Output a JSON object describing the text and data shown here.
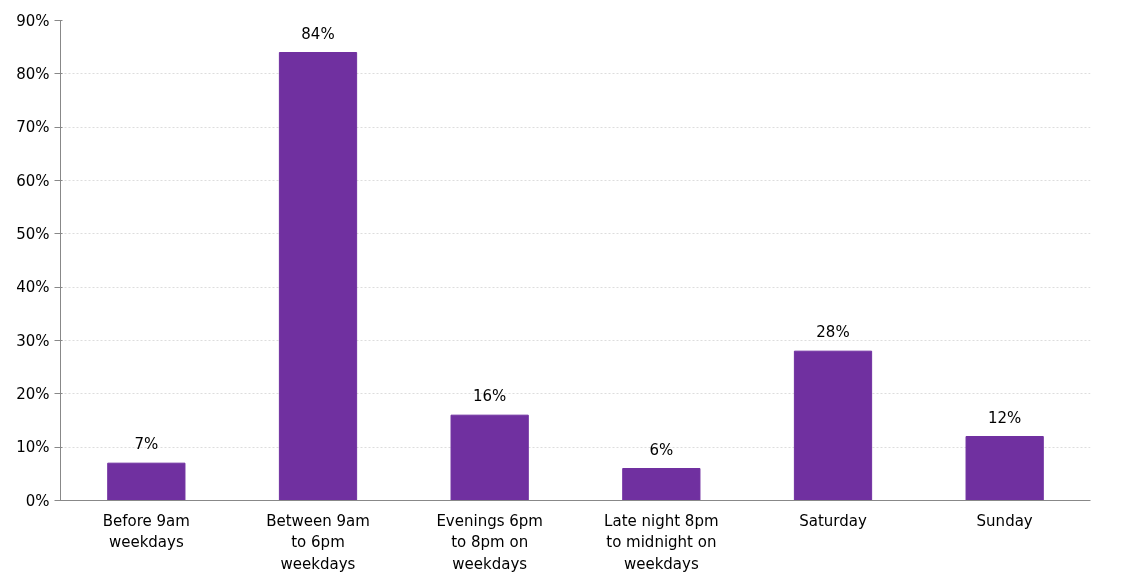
{
  "chart_data": {
    "type": "bar",
    "categories": [
      "Before 9am\nweekdays",
      "Between 9am\nto 6pm\nweekdays",
      "Evenings 6pm\nto 8pm on\nweekdays",
      "Late night 8pm\nto midnight on\nweekdays",
      "Saturday",
      "Sunday"
    ],
    "values": [
      7,
      84,
      16,
      6,
      28,
      12
    ],
    "value_labels": [
      "7%",
      "84%",
      "16%",
      "6%",
      "28%",
      "12%"
    ],
    "color": "#7030a0",
    "ylim": [
      0,
      90
    ],
    "yticks": [
      {
        "value": 0,
        "label": "0%"
      },
      {
        "value": 10,
        "label": "10%"
      },
      {
        "value": 20,
        "label": "20%"
      },
      {
        "value": 30,
        "label": "30%"
      },
      {
        "value": 40,
        "label": "40%"
      },
      {
        "value": 50,
        "label": "50%"
      },
      {
        "value": 60,
        "label": "60%"
      },
      {
        "value": 70,
        "label": "70%"
      },
      {
        "value": 80,
        "label": "80%"
      },
      {
        "value": 90,
        "label": "90%"
      }
    ],
    "grid": "y"
  }
}
